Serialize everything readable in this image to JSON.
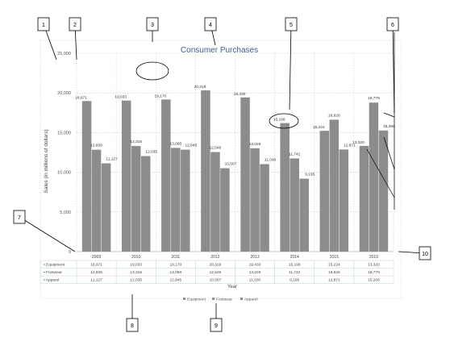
{
  "chart_data": {
    "type": "bar",
    "title": "Consumer Purchases",
    "xlabel": "Year",
    "ylabel": "Sales (in millions of dollars)",
    "ylim": [
      0,
      25000
    ],
    "yticks": [
      "0",
      "5,000",
      "10,000",
      "15,000",
      "20,000",
      "25,000"
    ],
    "grid": true,
    "legend_position": "bottom",
    "categories": [
      "2009",
      "2010",
      "2011",
      "2012",
      "2013",
      "2014",
      "2015",
      "2016"
    ],
    "series": [
      {
        "name": "Equipment",
        "values": [
          18971,
          19033,
          19170,
          20319,
          19430,
          16196,
          15224,
          13320
        ],
        "labels": [
          "18,971",
          "19,033",
          "19,170",
          "20,319",
          "19,430",
          "16,196",
          "15,224",
          "13,320"
        ]
      },
      {
        "name": "Footwear",
        "values": [
          12839,
          13316,
          13068,
          12546,
          13026,
          11742,
          16626,
          18779
        ],
        "labels": [
          "12,839",
          "13,316",
          "13,068",
          "12,546",
          "13,026",
          "11,742",
          "16,626",
          "18,779"
        ]
      },
      {
        "name": "Apparel",
        "values": [
          11127,
          12035,
          12845,
          10507,
          11030,
          9195,
          12871,
          15268
        ],
        "labels": [
          "11,127",
          "12,035",
          "12,845",
          "10,507",
          "11,030",
          "9,195",
          "12,871",
          "15,268"
        ]
      }
    ],
    "table_rows": [
      {
        "label": "Equipment",
        "cells": [
          "18,971",
          "19,033",
          "19,170",
          "20,319",
          "19,430",
          "16,196",
          "15,224",
          "13,320"
        ]
      },
      {
        "label": "Footwear",
        "cells": [
          "12,839",
          "13,316",
          "13,068",
          "12,546",
          "13,026",
          "11,742",
          "16,626",
          "18,779"
        ]
      },
      {
        "label": "Apparel",
        "cells": [
          "11,127",
          "12,035",
          "12,845",
          "10,507",
          "11,030",
          "9,195",
          "12,871",
          "15,268"
        ]
      }
    ],
    "legend": [
      "Equipment",
      "Footwear",
      "Apparel"
    ],
    "bar_color": "#8c8c8c",
    "grid_color": "#a8d8a8"
  },
  "callouts": [
    "1",
    "2",
    "3",
    "4",
    "5",
    "6",
    "7",
    "8",
    "9",
    "10"
  ]
}
